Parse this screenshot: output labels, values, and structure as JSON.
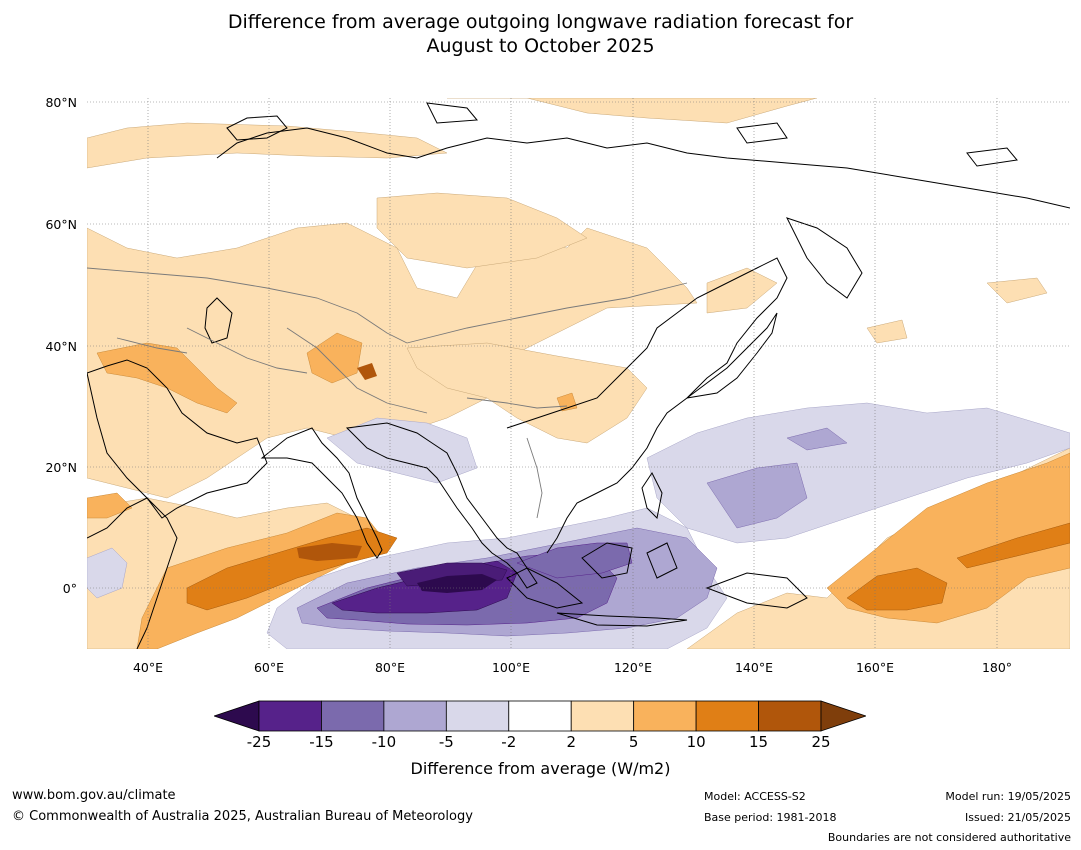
{
  "title": {
    "line1": "Difference from average outgoing longwave radiation forecast for",
    "line2": "August to October 2025"
  },
  "map": {
    "lat_labels": [
      "80°N",
      "60°N",
      "40°N",
      "20°N",
      "0°"
    ],
    "lon_labels": [
      "40°E",
      "60°E",
      "80°E",
      "100°E",
      "120°E",
      "140°E",
      "160°E",
      "180°"
    ]
  },
  "colorbar": {
    "ticks": [
      "-25",
      "-15",
      "-10",
      "-5",
      "-2",
      "2",
      "5",
      "10",
      "15",
      "25"
    ],
    "colors": [
      "#2d0a4e",
      "#56228a",
      "#7b6aad",
      "#aea7d2",
      "#d9d8ea",
      "#ffffff",
      "#fddfb3",
      "#f9b25c",
      "#e07f16",
      "#b0560b",
      "#7f3e0b"
    ],
    "title": "Difference from average (W/m2)"
  },
  "footer": {
    "website": "www.bom.gov.au/climate",
    "copyright": "© Commonwealth of Australia 2025, Australian Bureau of Meteorology",
    "model": "Model: ACCESS-S2",
    "base_period": "Base period: 1981-2018",
    "model_run": "Model run: 19/05/2025",
    "issued": "Issued: 21/05/2025",
    "disclaimer": "Boundaries are not considered authoritative"
  }
}
